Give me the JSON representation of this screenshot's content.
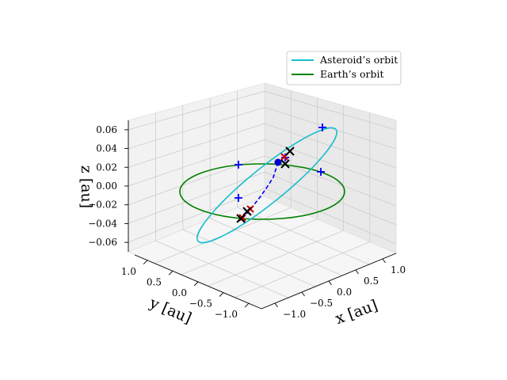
{
  "chart_data": {
    "type": "scatter3d",
    "legend": {
      "placement": "top-right",
      "entries": [
        {
          "label": "Asteroid’s orbit",
          "color": "#17becf"
        },
        {
          "label": "Earth’s orbit",
          "color": "#008000"
        }
      ]
    },
    "axes": {
      "x": {
        "label": "x [au]",
        "ticks": [
          "−1.0",
          "−0.5",
          "0.0",
          "0.5",
          "1.0"
        ],
        "range": [
          -1.2,
          1.2
        ]
      },
      "y": {
        "label": "y [au]",
        "ticks": [
          "−1.0",
          "−0.5",
          "0.0",
          "0.5",
          "1.0"
        ],
        "range": [
          -1.2,
          1.2
        ]
      },
      "z": {
        "label": "z [au]",
        "ticks": [
          "−0.06",
          "−0.04",
          "−0.02",
          "0.00",
          "0.02",
          "0.04",
          "0.06"
        ],
        "range": [
          -0.07,
          0.07
        ]
      },
      "grid": true
    },
    "series": [
      {
        "name": "Asteroid’s orbit",
        "kind": "ellipse-orbit",
        "color": "#17becf",
        "semi_major_au": 1.05,
        "eccentricity": 0.6,
        "inclination_deg": 5,
        "orientation_deg": 10
      },
      {
        "name": "Earth’s orbit",
        "kind": "circular-orbit",
        "color": "#008000",
        "radius_au": 1.0
      }
    ],
    "markers": {
      "sun": {
        "label": "",
        "x": 0.0,
        "y": 0.0,
        "z": 0.0,
        "color": "#0000cc"
      },
      "transfer_path": {
        "color": "#0000ff",
        "style": "dashed"
      },
      "blue_plus_count": 5,
      "black_x_count": 4,
      "red_x_count": 3
    }
  }
}
